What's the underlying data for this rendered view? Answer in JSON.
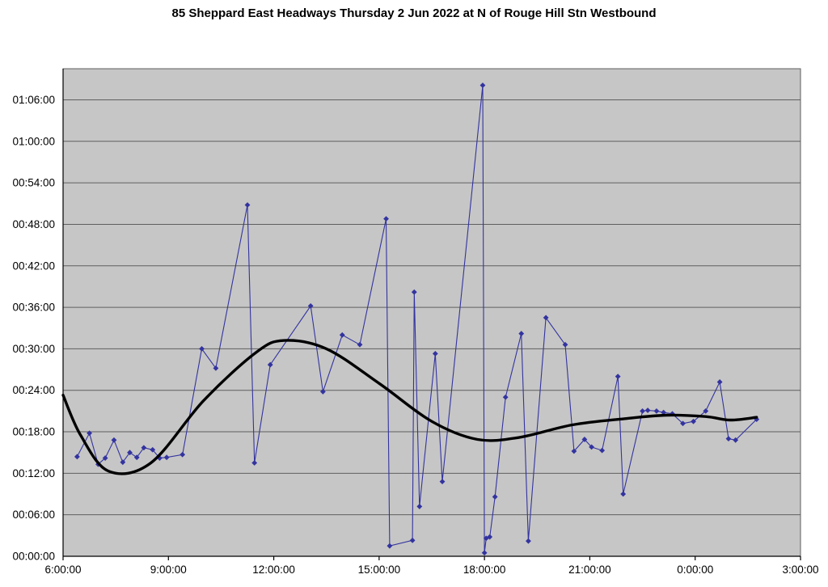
{
  "title": "85 Sheppard East Headways Thursday 2 Jun 2022 at N of Rouge Hill Stn Westbound",
  "chart_data": {
    "type": "line",
    "title": "85 Sheppard East Headways Thursday 2 Jun 2022 at N of Rouge Hill Stn Westbound",
    "x_unit": "time of day (decimal hours, >24 = after midnight)",
    "y_unit": "headway (decimal minutes)",
    "x_range": [
      6,
      27
    ],
    "y_range": [
      0,
      70.5
    ],
    "x_tick_values": [
      6,
      9,
      12,
      15,
      18,
      21,
      24,
      27
    ],
    "x_tick_labels": [
      "6:00:00",
      "9:00:00",
      "12:00:00",
      "15:00:00",
      "18:00:00",
      "21:00:00",
      "0:00:00",
      "3:00:00"
    ],
    "y_tick_values": [
      0,
      6,
      12,
      18,
      24,
      30,
      36,
      42,
      48,
      54,
      60,
      66
    ],
    "y_tick_labels": [
      "00:00:00",
      "00:06:00",
      "00:12:00",
      "00:18:00",
      "00:24:00",
      "00:30:00",
      "00:36:00",
      "00:42:00",
      "00:48:00",
      "00:54:00",
      "01:00:00",
      "01:06:00"
    ],
    "grid": "horizontal",
    "legend": "none",
    "colors": {
      "plot_background": "#c6c6c6",
      "gridline": "#5f5f5f",
      "axis": "#000000",
      "series": "#3333a0",
      "trend": "#000000"
    },
    "series": [
      {
        "name": "headways",
        "style": "scatter-line",
        "marker": "diamond",
        "points": [
          [
            6.4,
            14.4
          ],
          [
            6.75,
            17.8
          ],
          [
            7.0,
            13.3
          ],
          [
            7.2,
            14.2
          ],
          [
            7.45,
            16.8
          ],
          [
            7.7,
            13.6
          ],
          [
            7.9,
            15.0
          ],
          [
            8.1,
            14.3
          ],
          [
            8.3,
            15.7
          ],
          [
            8.55,
            15.4
          ],
          [
            8.75,
            14.2
          ],
          [
            8.95,
            14.3
          ],
          [
            9.4,
            14.7
          ],
          [
            9.95,
            30.0
          ],
          [
            10.35,
            27.2
          ],
          [
            11.25,
            50.8
          ],
          [
            11.45,
            13.5
          ],
          [
            11.9,
            27.7
          ],
          [
            13.05,
            36.2
          ],
          [
            13.4,
            23.8
          ],
          [
            13.95,
            32.0
          ],
          [
            14.45,
            30.6
          ],
          [
            15.2,
            48.8
          ],
          [
            15.3,
            1.5
          ],
          [
            15.95,
            2.3
          ],
          [
            16.0,
            38.2
          ],
          [
            16.15,
            7.2
          ],
          [
            16.6,
            29.3
          ],
          [
            16.8,
            10.8
          ],
          [
            17.95,
            68.1
          ],
          [
            18.0,
            0.5
          ],
          [
            18.05,
            2.6
          ],
          [
            18.15,
            2.8
          ],
          [
            18.3,
            8.6
          ],
          [
            18.6,
            23.0
          ],
          [
            19.05,
            32.2
          ],
          [
            19.25,
            2.2
          ],
          [
            19.75,
            34.5
          ],
          [
            20.3,
            30.6
          ],
          [
            20.55,
            15.2
          ],
          [
            20.85,
            16.9
          ],
          [
            21.05,
            15.8
          ],
          [
            21.35,
            15.3
          ],
          [
            21.8,
            26.0
          ],
          [
            21.95,
            9.0
          ],
          [
            22.5,
            21.0
          ],
          [
            22.65,
            21.1
          ],
          [
            22.9,
            21.0
          ],
          [
            23.1,
            20.8
          ],
          [
            23.35,
            20.6
          ],
          [
            23.65,
            19.2
          ],
          [
            23.95,
            19.5
          ],
          [
            24.3,
            21.0
          ],
          [
            24.7,
            25.2
          ],
          [
            24.95,
            17.0
          ],
          [
            25.15,
            16.8
          ],
          [
            25.75,
            19.8
          ]
        ]
      },
      {
        "name": "trend",
        "style": "smooth-curve",
        "marker": "none",
        "points": [
          [
            6.0,
            23.3
          ],
          [
            6.5,
            17.5
          ],
          [
            7.3,
            12.3
          ],
          [
            8.5,
            13.5
          ],
          [
            10.0,
            22.5
          ],
          [
            11.5,
            29.5
          ],
          [
            12.3,
            31.2
          ],
          [
            13.5,
            30.0
          ],
          [
            15.0,
            25.0
          ],
          [
            16.5,
            19.5
          ],
          [
            17.8,
            16.9
          ],
          [
            19.0,
            17.2
          ],
          [
            20.5,
            19.0
          ],
          [
            22.0,
            19.9
          ],
          [
            23.2,
            20.4
          ],
          [
            24.3,
            20.2
          ],
          [
            25.0,
            19.7
          ],
          [
            25.75,
            20.1
          ]
        ]
      }
    ]
  }
}
